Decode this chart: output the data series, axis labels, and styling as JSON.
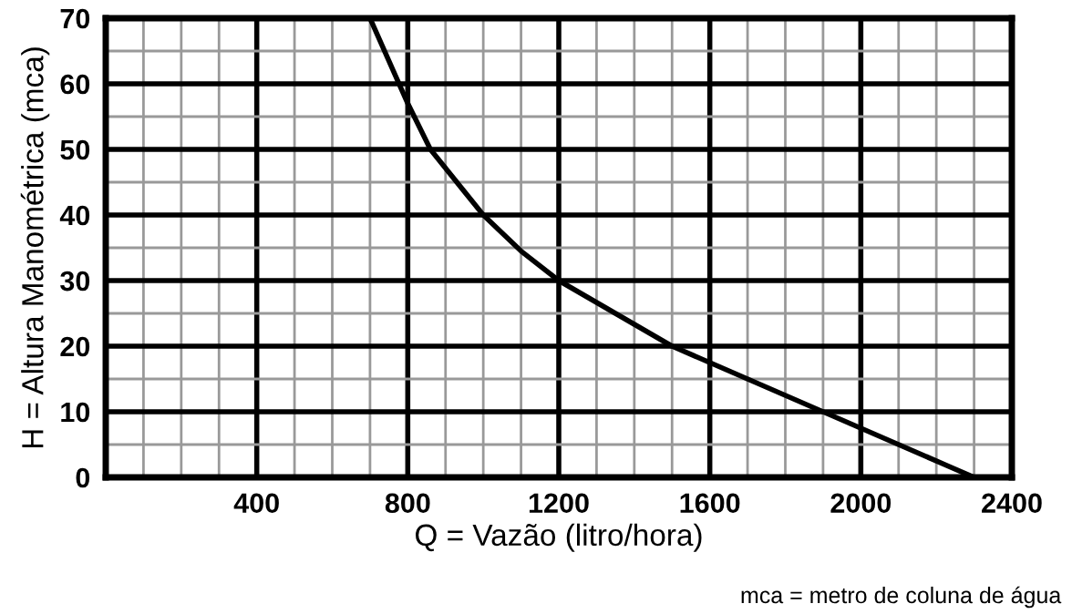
{
  "chart_data": {
    "type": "line",
    "xlabel": "Q = Vazão (litro/hora)",
    "ylabel": "H = Altura Manométrica (mca)",
    "annotations": [
      "mca = metro de coluna de água"
    ],
    "x": [
      700,
      800,
      860,
      1000,
      1100,
      1200,
      1500,
      1600,
      1900,
      2000,
      2300
    ],
    "series": [
      {
        "color": "#000000",
        "values": [
          70,
          57,
          50,
          40,
          34.5,
          30,
          20,
          17.5,
          10,
          7.5,
          0
        ]
      }
    ],
    "xlim": [
      0,
      2400
    ],
    "ylim": [
      0,
      70
    ],
    "xticks": [
      {
        "value": 0,
        "label": null
      },
      {
        "value": 100,
        "label": null
      },
      {
        "value": 200,
        "label": null
      },
      {
        "value": 300,
        "label": null
      },
      400,
      {
        "value": 500,
        "label": null
      },
      {
        "value": 600,
        "label": null
      },
      {
        "value": 700,
        "label": null
      },
      800,
      {
        "value": 900,
        "label": null
      },
      {
        "value": 1000,
        "label": null
      },
      {
        "value": 1100,
        "label": null
      },
      1200,
      {
        "value": 1300,
        "label": null
      },
      {
        "value": 1400,
        "label": null
      },
      {
        "value": 1500,
        "label": null
      },
      1600,
      {
        "value": 1700,
        "label": null
      },
      {
        "value": 1800,
        "label": null
      },
      {
        "value": 1900,
        "label": null
      },
      2000,
      {
        "value": 2100,
        "label": null
      },
      {
        "value": 2200,
        "label": null
      },
      {
        "value": 2300,
        "label": null
      },
      2400
    ],
    "yticks": [
      0,
      {
        "value": 5,
        "label": null
      },
      10,
      {
        "value": 15,
        "label": null
      },
      20,
      {
        "value": 25,
        "label": null
      },
      30,
      {
        "value": 35,
        "label": null
      },
      40,
      {
        "value": 45,
        "label": null
      },
      50,
      {
        "value": 55,
        "label": null
      },
      60,
      {
        "value": 65,
        "label": null
      },
      70
    ],
    "grid": true,
    "marker": "none",
    "line_style": "solid"
  }
}
